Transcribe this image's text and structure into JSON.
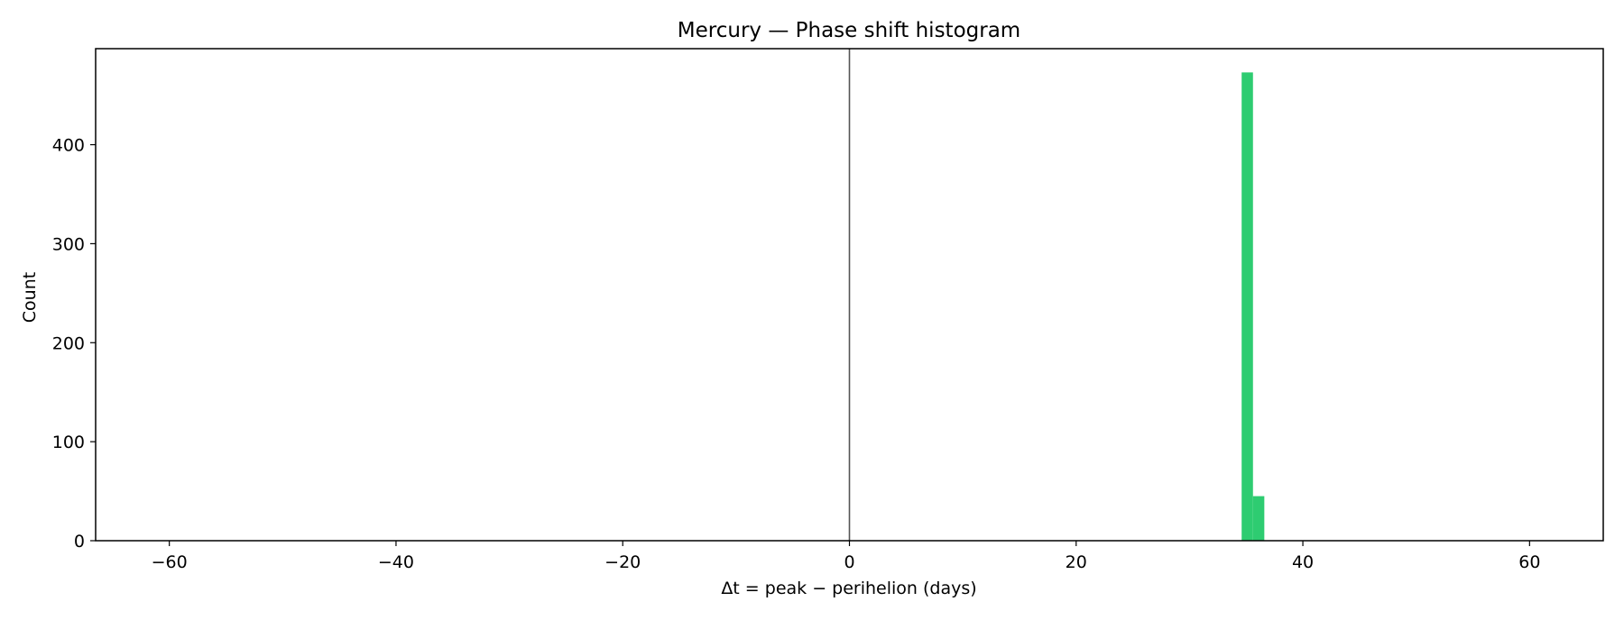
{
  "chart_data": {
    "type": "histogram",
    "title": "Mercury — Phase shift histogram",
    "xlabel": "Δt = peak − perihelion (days)",
    "ylabel": "Count",
    "xlim": [
      -66.5,
      66.5
    ],
    "ylim": [
      0,
      497
    ],
    "x_ticks": [
      -60,
      -40,
      -20,
      0,
      20,
      40,
      60
    ],
    "x_tick_labels": [
      "−60",
      "−40",
      "−20",
      "0",
      "20",
      "40",
      "60"
    ],
    "y_ticks": [
      0,
      100,
      200,
      300,
      400
    ],
    "y_tick_labels": [
      "0",
      "100",
      "200",
      "300",
      "400"
    ],
    "bar_color": "#2ecc71",
    "reference_line": {
      "x": 0,
      "color": "#555555"
    },
    "grid": false,
    "bins": [
      {
        "x0": 34.6,
        "x1": 35.6,
        "count": 473
      },
      {
        "x0": 35.6,
        "x1": 36.6,
        "count": 45
      }
    ]
  }
}
